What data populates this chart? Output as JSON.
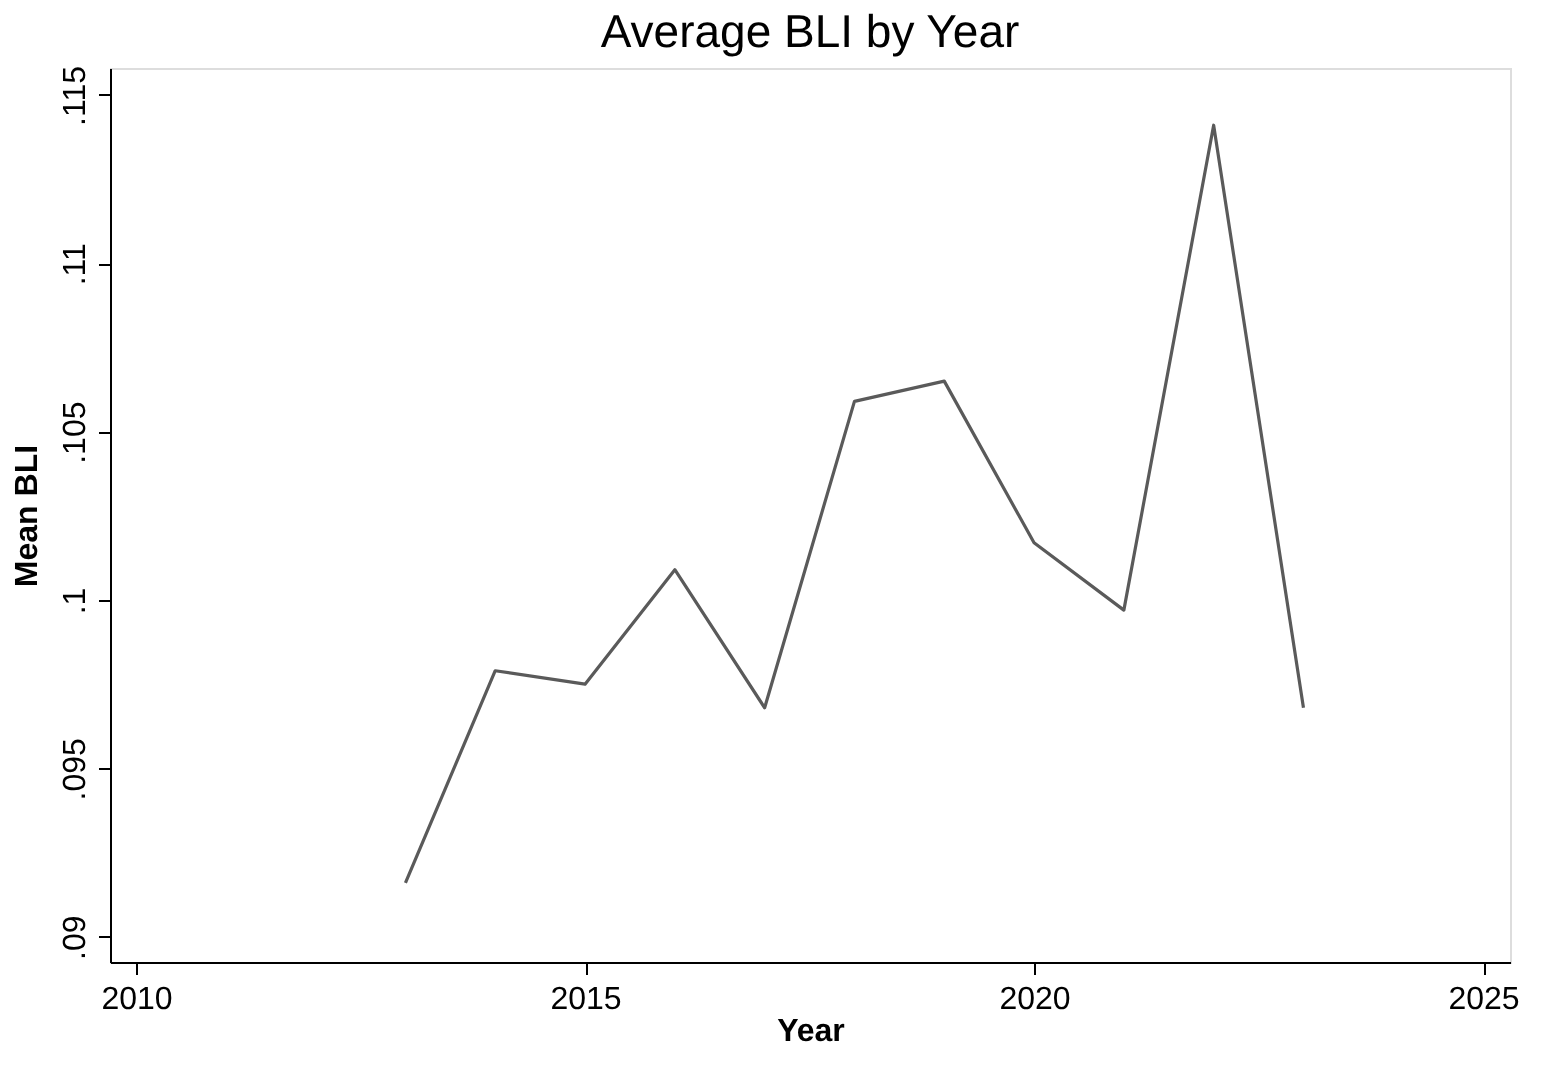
{
  "chart_data": {
    "type": "line",
    "title": "Average BLI by Year",
    "xlabel": "Year",
    "ylabel": "Mean BLI",
    "x": [
      2013,
      2014,
      2015,
      2016,
      2017,
      2018,
      2019,
      2020,
      2021,
      2022,
      2023
    ],
    "series": [
      {
        "color": "#5a5a5a",
        "values": [
          0.0916,
          0.0979,
          0.0975,
          0.1009,
          0.0968,
          0.1059,
          0.1065,
          0.1017,
          0.0997,
          0.1141,
          0.0968
        ]
      }
    ],
    "xlim": [
      2009.71,
      2025.3
    ],
    "xticks": [
      2010,
      2015,
      2020,
      2025
    ],
    "ylim": [
      0.08925,
      0.1158
    ],
    "yticks": [
      {
        "value": 0.09,
        "label": ".09"
      },
      {
        "value": 0.095,
        "label": ".095"
      },
      {
        "value": 0.1,
        "label": ".1"
      },
      {
        "value": 0.105,
        "label": ".105"
      },
      {
        "value": 0.11,
        "label": ".11"
      },
      {
        "value": 0.115,
        "label": ".115"
      }
    ],
    "grid": false,
    "legend": false,
    "marker": "none",
    "line_style": "solid"
  }
}
